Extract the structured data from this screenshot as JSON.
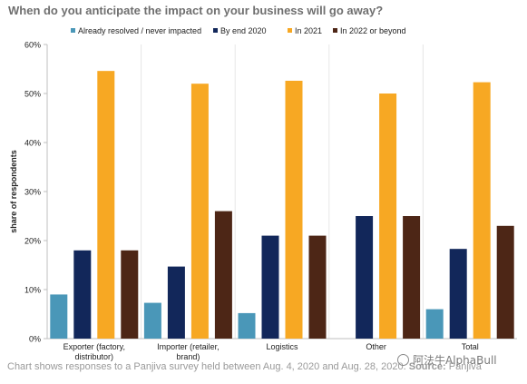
{
  "chart_data": {
    "type": "bar",
    "title": "When do you anticipate the impact on your business will go away?",
    "ylabel": "share of respondents",
    "xlabel": "",
    "ylim": [
      0,
      60
    ],
    "yticks": [
      0,
      10,
      20,
      30,
      40,
      50,
      60
    ],
    "ytick_labels": [
      "0%",
      "10%",
      "20%",
      "30%",
      "40%",
      "50%",
      "60%"
    ],
    "categories": [
      [
        "Exporter (factory,",
        "distributor)"
      ],
      [
        "Importer (retailer,",
        "brand)"
      ],
      [
        "Logistics"
      ],
      [
        "Other"
      ],
      [
        "Total"
      ]
    ],
    "series": [
      {
        "name": "Already resolved / never impacted",
        "color": "#4a97b8",
        "values": [
          9.0,
          7.3,
          5.2,
          0,
          6.0
        ]
      },
      {
        "name": "By end 2020",
        "color": "#12275a",
        "values": [
          18.0,
          14.7,
          21.0,
          25.0,
          18.3
        ]
      },
      {
        "name": "In 2021",
        "color": "#f7a823",
        "values": [
          54.6,
          52.0,
          52.6,
          50.0,
          52.3
        ]
      },
      {
        "name": "In 2022 or beyond",
        "color": "#4d2616",
        "values": [
          18.0,
          26.0,
          21.0,
          25.0,
          23.0
        ]
      }
    ],
    "legend_position": "top",
    "grid": false
  },
  "footer": {
    "text": "Chart shows responses to a Panjiva survey held between Aug. 4, 2020 and Aug. 28, 2020.",
    "source_label": "Source:",
    "source_value": "Panjiva"
  },
  "watermark": {
    "text": "阿法牛AlphaBull",
    "icon": "wechat-icon"
  }
}
